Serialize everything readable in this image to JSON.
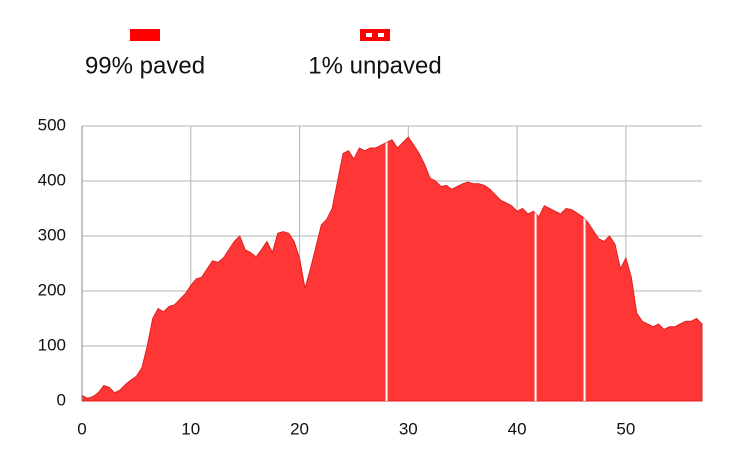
{
  "chart_data": {
    "type": "area",
    "color": "#ff3030",
    "legend": [
      {
        "label": "99% paved"
      },
      {
        "label": "1% unpaved"
      }
    ],
    "x": [
      0,
      0.5,
      1,
      1.5,
      2,
      2.5,
      3,
      3.5,
      4,
      4.5,
      5,
      5.5,
      6,
      6.5,
      7,
      7.5,
      8,
      8.5,
      9,
      9.5,
      10,
      10.5,
      11,
      11.5,
      12,
      12.5,
      13,
      13.5,
      14,
      14.5,
      15,
      15.5,
      16,
      16.5,
      17,
      17.5,
      18,
      18.5,
      19,
      19.5,
      20,
      20.5,
      21,
      21.5,
      22,
      22.5,
      23,
      23.5,
      24,
      24.5,
      25,
      25.5,
      26,
      26.5,
      27,
      27.5,
      28,
      28.5,
      29,
      29.5,
      30,
      30.5,
      31,
      31.5,
      32,
      32.5,
      33,
      33.5,
      34,
      34.5,
      35,
      35.5,
      36,
      36.5,
      37,
      37.5,
      38,
      38.5,
      39,
      39.5,
      40,
      40.5,
      41,
      41.5,
      42,
      42.5,
      43,
      43.5,
      44,
      44.5,
      45,
      45.5,
      46,
      46.5,
      47,
      47.5,
      48,
      48.5,
      49,
      49.5,
      50,
      50.5,
      51,
      51.5,
      52,
      52.5,
      53,
      53.5,
      54,
      54.5,
      55,
      55.5,
      56,
      56.5,
      57
    ],
    "values": [
      10,
      5,
      8,
      15,
      28,
      25,
      15,
      20,
      30,
      38,
      45,
      60,
      100,
      150,
      168,
      162,
      172,
      175,
      185,
      195,
      210,
      222,
      225,
      240,
      255,
      252,
      260,
      275,
      290,
      300,
      275,
      270,
      262,
      275,
      290,
      270,
      305,
      308,
      305,
      290,
      260,
      205,
      240,
      280,
      320,
      330,
      350,
      400,
      450,
      455,
      440,
      460,
      455,
      460,
      460,
      465,
      470,
      475,
      460,
      470,
      480,
      465,
      450,
      430,
      405,
      400,
      390,
      392,
      385,
      390,
      395,
      398,
      395,
      395,
      392,
      385,
      375,
      365,
      360,
      355,
      345,
      350,
      340,
      345,
      335,
      355,
      350,
      345,
      340,
      350,
      348,
      342,
      335,
      325,
      310,
      295,
      290,
      300,
      285,
      240,
      260,
      225,
      160,
      145,
      140,
      135,
      140,
      130,
      135,
      135,
      140,
      145,
      145,
      150,
      140
    ],
    "unpaved_x": [
      28,
      41.7,
      46.2
    ],
    "xlim": [
      0,
      57
    ],
    "ylim": [
      0,
      500
    ],
    "xticks": [
      0,
      10,
      20,
      30,
      40,
      50
    ],
    "yticks": [
      0,
      100,
      200,
      300,
      400,
      500
    ],
    "grid": true
  }
}
